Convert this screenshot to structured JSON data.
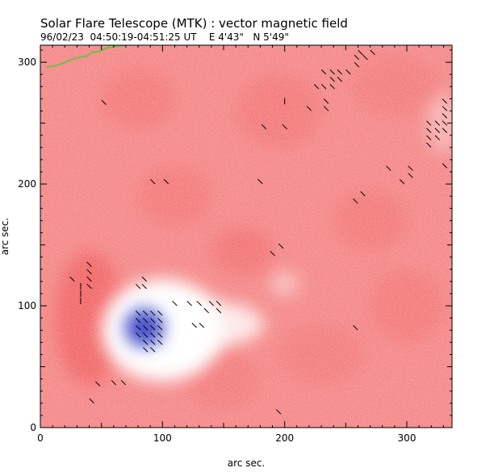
{
  "chart_data": {
    "type": "heatmap",
    "title": "Solar Flare Telescope (MTK) : vector magnetic field",
    "subtitle": "96/02/23  04:50:19-04:51:25 UT    E 4'43\"   N 5'49\"",
    "xlabel": "arc sec.",
    "ylabel": "arc sec.",
    "xlim": [
      0,
      337
    ],
    "ylim": [
      0,
      314
    ],
    "x_ticks": [
      0,
      100,
      200,
      300
    ],
    "y_ticks": [
      0,
      100,
      200,
      300
    ],
    "x_tick_labels": [
      "0",
      "100",
      "200",
      "300"
    ],
    "y_tick_labels": [
      "0",
      "100",
      "200",
      "300"
    ],
    "colors": {
      "positive_polarity": "#f26a6a",
      "negative_polarity": "#3c46c8",
      "neutral": "#ffffff",
      "contour": "#6cc04a",
      "vectors": "#000000"
    },
    "positive_patches": [
      {
        "x": 40,
        "y": 90,
        "rx": 28,
        "ry": 55,
        "strength": 1.0
      },
      {
        "x": 165,
        "y": 145,
        "rx": 25,
        "ry": 20,
        "strength": 0.6
      },
      {
        "x": 270,
        "y": 170,
        "rx": 30,
        "ry": 25,
        "strength": 0.45
      },
      {
        "x": 80,
        "y": 270,
        "rx": 30,
        "ry": 25,
        "strength": 0.4
      },
      {
        "x": 195,
        "y": 260,
        "rx": 35,
        "ry": 30,
        "strength": 0.45
      },
      {
        "x": 300,
        "y": 100,
        "rx": 30,
        "ry": 30,
        "strength": 0.4
      },
      {
        "x": 150,
        "y": 40,
        "rx": 30,
        "ry": 25,
        "strength": 0.35
      },
      {
        "x": 230,
        "y": 60,
        "rx": 35,
        "ry": 25,
        "strength": 0.35
      },
      {
        "x": 290,
        "y": 280,
        "rx": 35,
        "ry": 25,
        "strength": 0.35
      },
      {
        "x": 110,
        "y": 190,
        "rx": 30,
        "ry": 25,
        "strength": 0.4
      }
    ],
    "negative_patches": [
      {
        "x": 85,
        "y": 82,
        "rx": 16,
        "ry": 16,
        "strength": 1.0
      }
    ],
    "neutral_patches": [
      {
        "x": 100,
        "y": 80,
        "rx": 50,
        "ry": 42,
        "strength": 1.0
      },
      {
        "x": 145,
        "y": 85,
        "rx": 38,
        "ry": 18,
        "strength": 0.8
      },
      {
        "x": 200,
        "y": 118,
        "rx": 12,
        "ry": 10,
        "strength": 0.45
      },
      {
        "x": 330,
        "y": 250,
        "rx": 14,
        "ry": 25,
        "strength": 0.35
      }
    ],
    "contour_line": [
      [
        5,
        296
      ],
      [
        12,
        297
      ],
      [
        18,
        299
      ],
      [
        25,
        302
      ],
      [
        32,
        304
      ],
      [
        38,
        305
      ],
      [
        42,
        308
      ],
      [
        48,
        309
      ],
      [
        55,
        312
      ],
      [
        62,
        313
      ],
      [
        70,
        314
      ]
    ],
    "vectors": [
      {
        "x": 26,
        "y": 122,
        "angle": 45
      },
      {
        "x": 33,
        "y": 116,
        "angle": 90
      },
      {
        "x": 33,
        "y": 110,
        "angle": 90
      },
      {
        "x": 33,
        "y": 104,
        "angle": 90
      },
      {
        "x": 40,
        "y": 134,
        "angle": 45
      },
      {
        "x": 40,
        "y": 128,
        "angle": 45
      },
      {
        "x": 40,
        "y": 122,
        "angle": 45
      },
      {
        "x": 40,
        "y": 116,
        "angle": 45
      },
      {
        "x": 47,
        "y": 36,
        "angle": 45
      },
      {
        "x": 60,
        "y": 37,
        "angle": 45
      },
      {
        "x": 68,
        "y": 37,
        "angle": 45
      },
      {
        "x": 42,
        "y": 22,
        "angle": 45
      },
      {
        "x": 52,
        "y": 267,
        "angle": 45
      },
      {
        "x": 80,
        "y": 116,
        "angle": 45
      },
      {
        "x": 85,
        "y": 122,
        "angle": 45
      },
      {
        "x": 85,
        "y": 116,
        "angle": 45
      },
      {
        "x": 80,
        "y": 94,
        "angle": 45
      },
      {
        "x": 86,
        "y": 94,
        "angle": 45
      },
      {
        "x": 92,
        "y": 94,
        "angle": 45
      },
      {
        "x": 98,
        "y": 94,
        "angle": 45
      },
      {
        "x": 80,
        "y": 88,
        "angle": 45
      },
      {
        "x": 86,
        "y": 88,
        "angle": 45
      },
      {
        "x": 92,
        "y": 88,
        "angle": 45
      },
      {
        "x": 98,
        "y": 88,
        "angle": 45
      },
      {
        "x": 80,
        "y": 82,
        "angle": 45
      },
      {
        "x": 86,
        "y": 82,
        "angle": 45
      },
      {
        "x": 92,
        "y": 82,
        "angle": 45
      },
      {
        "x": 98,
        "y": 82,
        "angle": 45
      },
      {
        "x": 80,
        "y": 76,
        "angle": 45
      },
      {
        "x": 86,
        "y": 76,
        "angle": 45
      },
      {
        "x": 92,
        "y": 76,
        "angle": 45
      },
      {
        "x": 98,
        "y": 76,
        "angle": 45
      },
      {
        "x": 86,
        "y": 70,
        "angle": 45
      },
      {
        "x": 92,
        "y": 70,
        "angle": 45
      },
      {
        "x": 98,
        "y": 70,
        "angle": 45
      },
      {
        "x": 86,
        "y": 64,
        "angle": 45
      },
      {
        "x": 92,
        "y": 64,
        "angle": 45
      },
      {
        "x": 110,
        "y": 102,
        "angle": 45
      },
      {
        "x": 122,
        "y": 102,
        "angle": 45
      },
      {
        "x": 130,
        "y": 102,
        "angle": 45
      },
      {
        "x": 140,
        "y": 102,
        "angle": 45
      },
      {
        "x": 146,
        "y": 102,
        "angle": 45
      },
      {
        "x": 136,
        "y": 96,
        "angle": 45
      },
      {
        "x": 146,
        "y": 96,
        "angle": 45
      },
      {
        "x": 126,
        "y": 84,
        "angle": 45
      },
      {
        "x": 132,
        "y": 84,
        "angle": 45
      },
      {
        "x": 92,
        "y": 202,
        "angle": 45
      },
      {
        "x": 103,
        "y": 202,
        "angle": 45
      },
      {
        "x": 180,
        "y": 202,
        "angle": 45
      },
      {
        "x": 183,
        "y": 247,
        "angle": 45
      },
      {
        "x": 200,
        "y": 247,
        "angle": 45
      },
      {
        "x": 200,
        "y": 268,
        "angle": 90
      },
      {
        "x": 220,
        "y": 262,
        "angle": 45
      },
      {
        "x": 234,
        "y": 262,
        "angle": 45
      },
      {
        "x": 234,
        "y": 268,
        "angle": 45
      },
      {
        "x": 190,
        "y": 143,
        "angle": 45
      },
      {
        "x": 197,
        "y": 149,
        "angle": 45
      },
      {
        "x": 226,
        "y": 280,
        "angle": 45
      },
      {
        "x": 232,
        "y": 280,
        "angle": 45
      },
      {
        "x": 239,
        "y": 280,
        "angle": 45
      },
      {
        "x": 245,
        "y": 286,
        "angle": 45
      },
      {
        "x": 239,
        "y": 286,
        "angle": 45
      },
      {
        "x": 232,
        "y": 292,
        "angle": 45
      },
      {
        "x": 239,
        "y": 292,
        "angle": 45
      },
      {
        "x": 245,
        "y": 292,
        "angle": 45
      },
      {
        "x": 252,
        "y": 292,
        "angle": 45
      },
      {
        "x": 259,
        "y": 298,
        "angle": 45
      },
      {
        "x": 259,
        "y": 304,
        "angle": 45
      },
      {
        "x": 266,
        "y": 304,
        "angle": 45
      },
      {
        "x": 272,
        "y": 308,
        "angle": 45
      },
      {
        "x": 262,
        "y": 308,
        "angle": 45
      },
      {
        "x": 258,
        "y": 186,
        "angle": 45
      },
      {
        "x": 264,
        "y": 192,
        "angle": 45
      },
      {
        "x": 285,
        "y": 213,
        "angle": 45
      },
      {
        "x": 303,
        "y": 213,
        "angle": 45
      },
      {
        "x": 303,
        "y": 207,
        "angle": 45
      },
      {
        "x": 296,
        "y": 202,
        "angle": 45
      },
      {
        "x": 318,
        "y": 250,
        "angle": 45
      },
      {
        "x": 318,
        "y": 244,
        "angle": 45
      },
      {
        "x": 325,
        "y": 250,
        "angle": 45
      },
      {
        "x": 325,
        "y": 244,
        "angle": 45
      },
      {
        "x": 318,
        "y": 238,
        "angle": 45
      },
      {
        "x": 325,
        "y": 238,
        "angle": 45
      },
      {
        "x": 318,
        "y": 232,
        "angle": 45
      },
      {
        "x": 331,
        "y": 244,
        "angle": 45
      },
      {
        "x": 331,
        "y": 250,
        "angle": 45
      },
      {
        "x": 331,
        "y": 256,
        "angle": 45
      },
      {
        "x": 331,
        "y": 262,
        "angle": 45
      },
      {
        "x": 331,
        "y": 268,
        "angle": 45
      },
      {
        "x": 331,
        "y": 215,
        "angle": 45
      },
      {
        "x": 258,
        "y": 82,
        "angle": 45
      },
      {
        "x": 195,
        "y": 13,
        "angle": 45
      }
    ]
  }
}
